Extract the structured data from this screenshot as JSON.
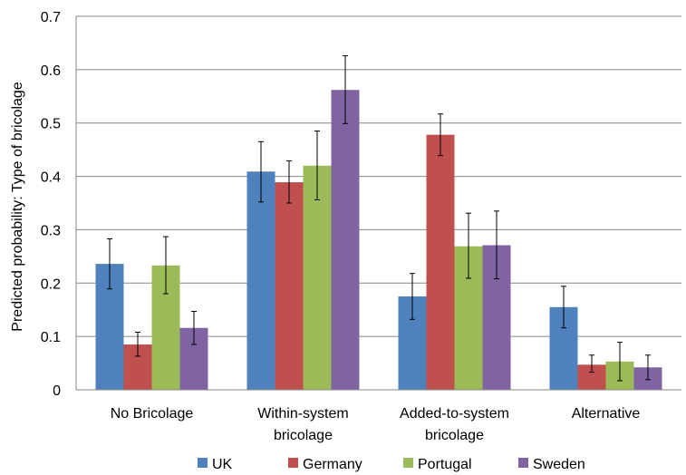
{
  "chart_data": {
    "type": "bar",
    "title": "",
    "xlabel": "",
    "ylabel": "Predicted probability: Type of bricolage",
    "ylim": [
      0,
      0.7
    ],
    "ytick_step": 0.1,
    "yticks": [
      "0",
      "0.1",
      "0.2",
      "0.3",
      "0.4",
      "0.5",
      "0.6",
      "0.7"
    ],
    "grid": true,
    "legend_position": "bottom",
    "categories": [
      [
        "No Bricolage"
      ],
      [
        "Within-system",
        "bricolage"
      ],
      [
        "Added-to-system",
        "bricolage"
      ],
      [
        "Alternative"
      ]
    ],
    "series": [
      {
        "name": "UK",
        "color": "#4f81bd",
        "values": [
          0.236,
          0.409,
          0.175,
          0.155
        ],
        "err_low": [
          0.189,
          0.352,
          0.132,
          0.116
        ],
        "err_high": [
          0.283,
          0.465,
          0.218,
          0.194
        ]
      },
      {
        "name": "Germany",
        "color": "#c0504d",
        "values": [
          0.085,
          0.389,
          0.478,
          0.047
        ],
        "err_low": [
          0.063,
          0.35,
          0.439,
          0.033
        ],
        "err_high": [
          0.108,
          0.429,
          0.517,
          0.065
        ]
      },
      {
        "name": "Portugal",
        "color": "#9bbb59",
        "values": [
          0.233,
          0.42,
          0.269,
          0.053
        ],
        "err_low": [
          0.18,
          0.356,
          0.209,
          0.017
        ],
        "err_high": [
          0.287,
          0.485,
          0.331,
          0.089
        ]
      },
      {
        "name": "Sweden",
        "color": "#8064a2",
        "values": [
          0.116,
          0.562,
          0.271,
          0.042
        ],
        "err_low": [
          0.085,
          0.499,
          0.208,
          0.019
        ],
        "err_high": [
          0.147,
          0.626,
          0.335,
          0.065
        ]
      }
    ]
  }
}
